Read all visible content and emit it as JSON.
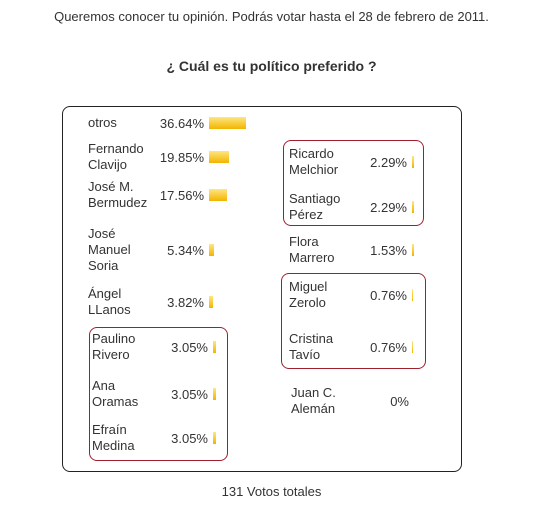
{
  "header": "Queremos conocer tu opinión. Podrás votar hasta el 28 de febrero de 2011.",
  "question": "¿ Cuál es tu político preferido ?",
  "options": [
    {
      "name": "otros",
      "value": 36.64,
      "label": "36.64%"
    },
    {
      "name": "Fernando Clavijo",
      "value": 19.85,
      "label": "19.85%"
    },
    {
      "name": "José M. Bermudez",
      "value": 17.56,
      "label": "17.56%"
    },
    {
      "name": "José Manuel Soria",
      "value": 5.34,
      "label": "5.34%"
    },
    {
      "name": "Ángel LLanos",
      "value": 3.82,
      "label": "3.82%"
    },
    {
      "name": "Paulino Rivero",
      "value": 3.05,
      "label": "3.05%"
    },
    {
      "name": "Ana Oramas",
      "value": 3.05,
      "label": "3.05%"
    },
    {
      "name": "Efraín Medina",
      "value": 3.05,
      "label": "3.05%"
    },
    {
      "name": "Ricardo Melchior",
      "value": 2.29,
      "label": "2.29%"
    },
    {
      "name": "Santiago Pérez",
      "value": 2.29,
      "label": "2.29%"
    },
    {
      "name": "Flora Marrero",
      "value": 1.53,
      "label": "1.53%"
    },
    {
      "name": "Miguel Zerolo",
      "value": 0.76,
      "label": "0.76%"
    },
    {
      "name": "Cristina Tavío",
      "value": 0.76,
      "label": "0.76%"
    },
    {
      "name": "Juan C. Alemán",
      "value": 0,
      "label": "0%"
    }
  ],
  "footer": "131 Votos totales"
}
